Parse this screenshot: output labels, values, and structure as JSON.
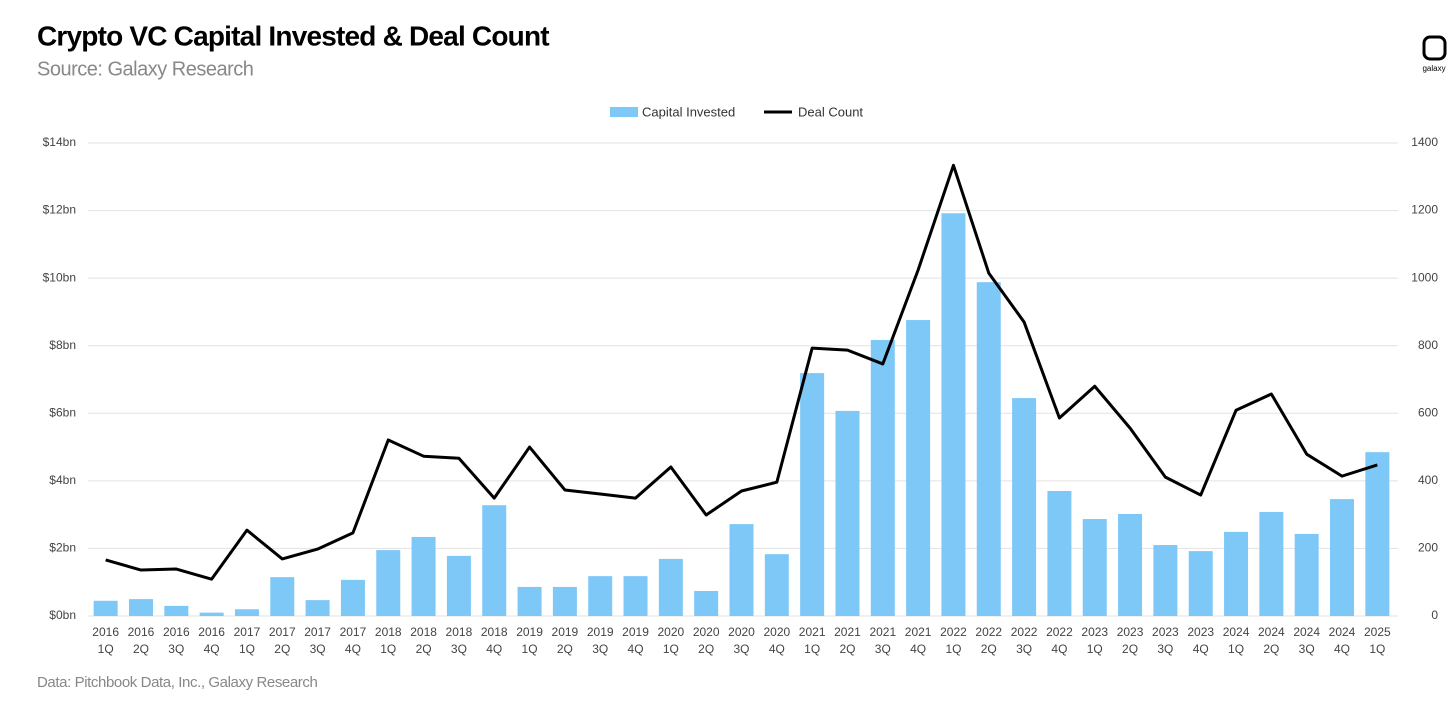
{
  "brand": "galaxy",
  "footnote": "Data: Pitchbook Data, Inc., Galaxy Research",
  "chart_data": {
    "type": "bar-line",
    "title": "Crypto VC Capital Invested & Deal Count",
    "subtitle": "Source: Galaxy Research",
    "categories": [
      [
        "2016",
        "1Q"
      ],
      [
        "2016",
        "2Q"
      ],
      [
        "2016",
        "3Q"
      ],
      [
        "2016",
        "4Q"
      ],
      [
        "2017",
        "1Q"
      ],
      [
        "2017",
        "2Q"
      ],
      [
        "2017",
        "3Q"
      ],
      [
        "2017",
        "4Q"
      ],
      [
        "2018",
        "1Q"
      ],
      [
        "2018",
        "2Q"
      ],
      [
        "2018",
        "3Q"
      ],
      [
        "2018",
        "4Q"
      ],
      [
        "2019",
        "1Q"
      ],
      [
        "2019",
        "2Q"
      ],
      [
        "2019",
        "3Q"
      ],
      [
        "2019",
        "4Q"
      ],
      [
        "2020",
        "1Q"
      ],
      [
        "2020",
        "2Q"
      ],
      [
        "2020",
        "3Q"
      ],
      [
        "2020",
        "4Q"
      ],
      [
        "2021",
        "1Q"
      ],
      [
        "2021",
        "2Q"
      ],
      [
        "2021",
        "3Q"
      ],
      [
        "2021",
        "4Q"
      ],
      [
        "2022",
        "1Q"
      ],
      [
        "2022",
        "2Q"
      ],
      [
        "2022",
        "3Q"
      ],
      [
        "2022",
        "4Q"
      ],
      [
        "2023",
        "1Q"
      ],
      [
        "2023",
        "2Q"
      ],
      [
        "2023",
        "3Q"
      ],
      [
        "2023",
        "4Q"
      ],
      [
        "2024",
        "1Q"
      ],
      [
        "2024",
        "2Q"
      ],
      [
        "2024",
        "3Q"
      ],
      [
        "2024",
        "4Q"
      ],
      [
        "2025",
        "1Q"
      ]
    ],
    "series": [
      {
        "name": "Capital Invested",
        "type": "bar",
        "color": "#7ec8f8",
        "axis": "y",
        "values": [
          0.45,
          0.5,
          0.3,
          0.1,
          0.2,
          1.15,
          0.47,
          1.07,
          1.95,
          2.34,
          1.78,
          3.28,
          0.86,
          0.86,
          1.18,
          1.18,
          1.69,
          0.74,
          2.72,
          1.83,
          7.19,
          6.07,
          8.17,
          8.76,
          11.92,
          9.88,
          6.45,
          3.7,
          2.87,
          3.02,
          2.1,
          1.92,
          2.49,
          3.08,
          2.43,
          3.46,
          4.85
        ]
      },
      {
        "name": "Deal Count",
        "type": "line",
        "color": "#000000",
        "axis": "y2",
        "values": [
          166,
          136,
          139,
          109,
          254,
          169,
          198,
          246,
          521,
          473,
          467,
          349,
          500,
          373,
          361,
          349,
          441,
          299,
          370,
          396,
          793,
          787,
          746,
          1024,
          1334,
          1015,
          870,
          586,
          680,
          556,
          411,
          358,
          609,
          657,
          479,
          414,
          447
        ]
      }
    ],
    "ylim": [
      0,
      14
    ],
    "yticks": [
      {
        "value": 0,
        "label": "$0bn"
      },
      {
        "value": 2,
        "label": "$2bn"
      },
      {
        "value": 4,
        "label": "$4bn"
      },
      {
        "value": 6,
        "label": "$6bn"
      },
      {
        "value": 8,
        "label": "$8bn"
      },
      {
        "value": 10,
        "label": "$10bn"
      },
      {
        "value": 12,
        "label": "$12bn"
      },
      {
        "value": 14,
        "label": "$14bn"
      }
    ],
    "y2lim": [
      0,
      1400
    ],
    "y2ticks": [
      0,
      200,
      400,
      600,
      800,
      1000,
      1200,
      1400
    ],
    "grid": true,
    "legend": "top"
  }
}
